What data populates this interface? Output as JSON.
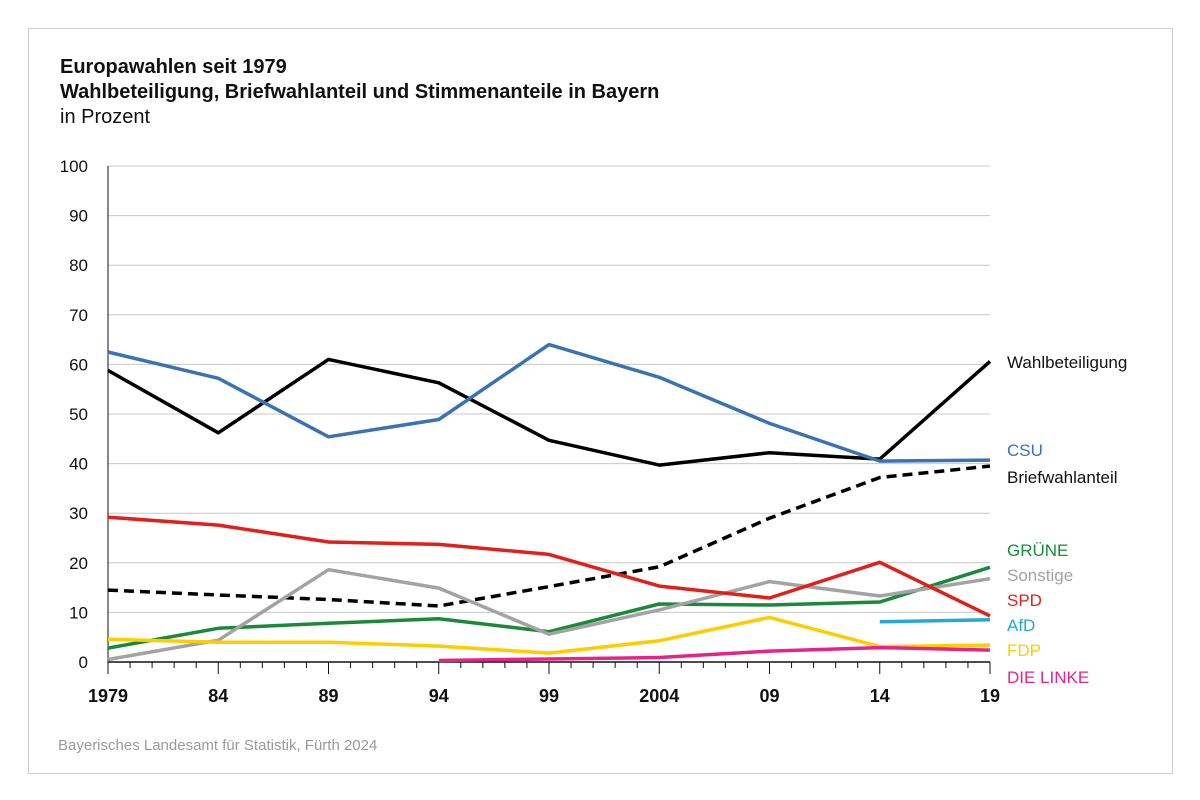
{
  "title": "Europawahlen seit 1979",
  "subtitle": "Wahlbeteiligung, Briefwahlanteil und Stimmenanteile in Bayern",
  "unit_label": "in Prozent",
  "source": "Bayerisches Landesamt für Statistik, Fürth 2024",
  "chart_data": {
    "type": "line",
    "title": "Europawahlen seit 1979",
    "subtitle": "Wahlbeteiligung, Briefwahlanteil und Stimmenanteile in Bayern",
    "ylabel": "in Prozent",
    "ylim": [
      0,
      100
    ],
    "xlim": [
      1979,
      2019
    ],
    "grid": true,
    "yticks": [
      0,
      10,
      20,
      30,
      40,
      50,
      60,
      70,
      80,
      90,
      100
    ],
    "xticks": [
      {
        "x": 1979,
        "label": "1979"
      },
      {
        "x": 1984,
        "label": "84"
      },
      {
        "x": 1989,
        "label": "89"
      },
      {
        "x": 1994,
        "label": "94"
      },
      {
        "x": 1999,
        "label": "99"
      },
      {
        "x": 2004,
        "label": "2004"
      },
      {
        "x": 2009,
        "label": "09"
      },
      {
        "x": 2014,
        "label": "14"
      },
      {
        "x": 2019,
        "label": "19"
      }
    ],
    "legend_placement": "right, inline labels at line ends",
    "series": [
      {
        "name": "Wahlbeteiligung",
        "color": "#000000",
        "dashed": false,
        "x": [
          1979,
          1984,
          1989,
          1994,
          1999,
          2004,
          2009,
          2014,
          2019
        ],
        "values": [
          58.8,
          46.2,
          61.0,
          56.3,
          44.7,
          39.7,
          42.2,
          40.9,
          60.6
        ]
      },
      {
        "name": "CSU",
        "color": "#3b73b2",
        "dashed": false,
        "x": [
          1979,
          1984,
          1989,
          1994,
          1999,
          2004,
          2009,
          2014,
          2019
        ],
        "values": [
          62.5,
          57.2,
          45.4,
          48.9,
          64.0,
          57.4,
          48.1,
          40.5,
          40.7
        ]
      },
      {
        "name": "Briefwahlanteil",
        "color": "#000000",
        "dashed": true,
        "x": [
          1979,
          1984,
          1989,
          1994,
          1999,
          2004,
          2009,
          2014,
          2019
        ],
        "values": [
          14.5,
          13.5,
          12.6,
          11.3,
          15.2,
          19.2,
          29.0,
          37.2,
          39.5
        ]
      },
      {
        "name": "GRÜNE",
        "color": "#1a8a3a",
        "dashed": false,
        "x": [
          1979,
          1984,
          1989,
          1994,
          1999,
          2004,
          2009,
          2014,
          2019
        ],
        "values": [
          2.8,
          6.8,
          7.8,
          8.7,
          6.1,
          11.7,
          11.5,
          12.1,
          19.1
        ]
      },
      {
        "name": "Sonstige",
        "color": "#a3a3a3",
        "dashed": false,
        "x": [
          1979,
          1984,
          1989,
          1994,
          1999,
          2004,
          2009,
          2014,
          2019
        ],
        "values": [
          0.5,
          4.4,
          18.6,
          14.9,
          5.6,
          10.5,
          16.2,
          13.3,
          16.8
        ]
      },
      {
        "name": "SPD",
        "color": "#e0201b",
        "dashed": false,
        "x": [
          1979,
          1984,
          1989,
          1994,
          1999,
          2004,
          2009,
          2014,
          2019
        ],
        "values": [
          29.2,
          27.6,
          24.2,
          23.7,
          21.7,
          15.3,
          12.9,
          20.1,
          9.3
        ]
      },
      {
        "name": "AfD",
        "color": "#26a8d6",
        "dashed": false,
        "x": [
          2014,
          2019
        ],
        "values": [
          8.1,
          8.5
        ]
      },
      {
        "name": "FDP",
        "color": "#ffcc00",
        "dashed": false,
        "x": [
          1979,
          1984,
          1989,
          1994,
          1999,
          2004,
          2009,
          2014,
          2019
        ],
        "values": [
          4.6,
          4.0,
          4.0,
          3.2,
          1.8,
          4.3,
          9.0,
          3.1,
          3.4
        ]
      },
      {
        "name": "DIE LINKE",
        "color": "#e5248b",
        "dashed": false,
        "x": [
          1994,
          1999,
          2004,
          2009,
          2014,
          2019
        ],
        "values": [
          0.3,
          0.6,
          0.9,
          2.2,
          2.9,
          2.4
        ]
      }
    ]
  }
}
